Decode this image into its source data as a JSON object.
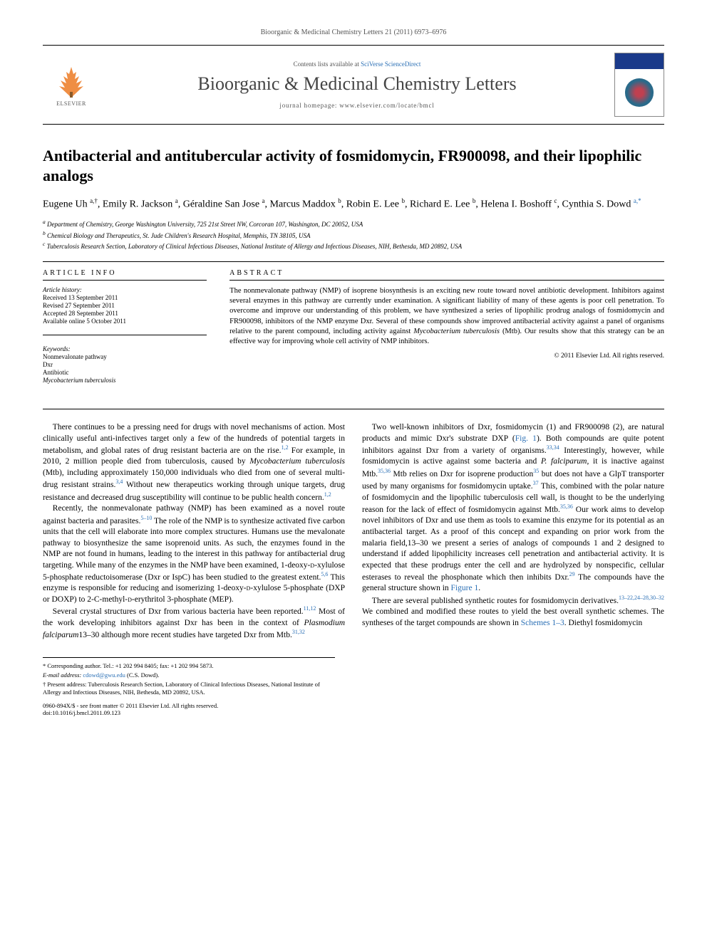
{
  "citation": "Bioorganic & Medicinal Chemistry Letters 21 (2011) 6973–6976",
  "masthead": {
    "contents_prefix": "Contents lists available at ",
    "contents_link": "SciVerse ScienceDirect",
    "journal_name": "Bioorganic & Medicinal Chemistry Letters",
    "homepage_prefix": "journal homepage: ",
    "homepage_url": "www.elsevier.com/locate/bmcl",
    "publisher_label": "ELSEVIER"
  },
  "title": "Antibacterial and antitubercular activity of fosmidomycin, FR900098, and their lipophilic analogs",
  "authors_html": "Eugene Uh <sup>a,†</sup>, Emily R. Jackson <sup>a</sup>, Géraldine San Jose <sup>a</sup>, Marcus Maddox <sup>b</sup>, Robin E. Lee <sup>b</sup>, Richard E. Lee <sup>b</sup>, Helena I. Boshoff <sup>c</sup>, Cynthia S. Dowd <sup class=\"author-link\">a,*</sup>",
  "affiliations": [
    "a Department of Chemistry, George Washington University, 725 21st Street NW, Corcoran 107, Washington, DC 20052, USA",
    "b Chemical Biology and Therapeutics, St. Jude Children's Research Hospital, Memphis, TN 38105, USA",
    "c Tuberculosis Research Section, Laboratory of Clinical Infectious Diseases, National Institute of Allergy and Infectious Diseases, NIH, Bethesda, MD 20892, USA"
  ],
  "article_info": {
    "heading": "ARTICLE INFO",
    "history_label": "Article history:",
    "history": [
      "Received 13 September 2011",
      "Revised 27 September 2011",
      "Accepted 28 September 2011",
      "Available online 5 October 2011"
    ],
    "keywords_label": "Keywords:",
    "keywords": [
      "Nonmevalonate pathway",
      "Dxr",
      "Antibiotic",
      "Mycobacterium tuberculosis"
    ]
  },
  "abstract": {
    "heading": "ABSTRACT",
    "text": "The nonmevalonate pathway (NMP) of isoprene biosynthesis is an exciting new route toward novel antibiotic development. Inhibitors against several enzymes in this pathway are currently under examination. A significant liability of many of these agents is poor cell penetration. To overcome and improve our understanding of this problem, we have synthesized a series of lipophilic prodrug analogs of fosmidomycin and FR900098, inhibitors of the NMP enzyme Dxr. Several of these compounds show improved antibacterial activity against a panel of organisms relative to the parent compound, including activity against Mycobacterium tuberculosis (Mtb). Our results show that this strategy can be an effective way for improving whole cell activity of NMP inhibitors.",
    "copyright": "© 2011 Elsevier Ltd. All rights reserved."
  },
  "body": {
    "p1": "There continues to be a pressing need for drugs with novel mechanisms of action. Most clinically useful anti-infectives target only a few of the hundreds of potential targets in metabolism, and global rates of drug resistant bacteria are on the rise.1,2 For example, in 2010, 2 million people died from tuberculosis, caused by Mycobacterium tuberculosis (Mtb), including approximately 150,000 individuals who died from one of several multi-drug resistant strains.3,4 Without new therapeutics working through unique targets, drug resistance and decreased drug susceptibility will continue to be public health concern.1,2",
    "p2": "Recently, the nonmevalonate pathway (NMP) has been examined as a novel route against bacteria and parasites.5–10 The role of the NMP is to synthesize activated five carbon units that the cell will elaborate into more complex structures. Humans use the mevalonate pathway to biosynthesize the same isoprenoid units. As such, the enzymes found in the NMP are not found in humans, leading to the interest in this pathway for antibacterial drug targeting. While many of the enzymes in the NMP have been examined, 1-deoxy-D-xylulose 5-phosphate reductoisomerase (Dxr or IspC) has been studied to the greatest extent.5,6 This enzyme is responsible for reducing and isomerizing 1-deoxy-D-xylulose 5-phosphate (DXP or DOXP) to 2-C-methyl-D-erythritol 3-phosphate (MEP).",
    "p3": "Several crystal structures of Dxr from various bacteria have been reported.11,12 Most of the work developing inhibitors against Dxr has been in the context of Plasmodium falciparum13–30 although more recent studies have targeted Dxr from Mtb.31,32",
    "p4": "Two well-known inhibitors of Dxr, fosmidomycin (1) and FR900098 (2), are natural products and mimic Dxr's substrate DXP (Fig. 1). Both compounds are quite potent inhibitors against Dxr from a variety of organisms.33,34 Interestingly, however, while fosmidomycin is active against some bacteria and P. falciparum, it is inactive against Mtb.35,36 Mtb relies on Dxr for isoprene production35 but does not have a GlpT transporter used by many organisms for fosmidomycin uptake.37 This, combined with the polar nature of fosmidomycin and the lipophilic tuberculosis cell wall, is thought to be the underlying reason for the lack of effect of fosmidomycin against Mtb.35,36 Our work aims to develop novel inhibitors of Dxr and use them as tools to examine this enzyme for its potential as an antibacterial target. As a proof of this concept and expanding on prior work from the malaria field,13–30 we present a series of analogs of compounds 1 and 2 designed to understand if added lipophilicity increases cell penetration and antibacterial activity. It is expected that these prodrugs enter the cell and are hydrolyzed by nonspecific, cellular esterases to reveal the phosphonate which then inhibits Dxr.29 The compounds have the general structure shown in Figure 1.",
    "p5": "There are several published synthetic routes for fosmidomycin derivatives.13–22,24–28,30–32 We combined and modified these routes to yield the best overall synthetic schemes. The syntheses of the target compounds are shown in Schemes 1–3. Diethyl fosmidomycin"
  },
  "footnotes": {
    "corresponding": "* Corresponding author. Tel.: +1 202 994 8405; fax: +1 202 994 5873.",
    "email_label": "E-mail address:",
    "email": "cdowd@gwu.edu",
    "email_name": "(C.S. Dowd).",
    "present": "† Present address: Tuberculosis Research Section, Laboratory of Clinical Infectious Diseases, National Institute of Allergy and Infectious Diseases, NIH, Bethesda, MD 20892, USA."
  },
  "footer": {
    "left1": "0960-894X/$ - see front matter © 2011 Elsevier Ltd. All rights reserved.",
    "left2": "doi:10.1016/j.bmcl.2011.09.123"
  },
  "colors": {
    "link": "#2a6fb5",
    "text": "#000000",
    "muted": "#555555"
  }
}
